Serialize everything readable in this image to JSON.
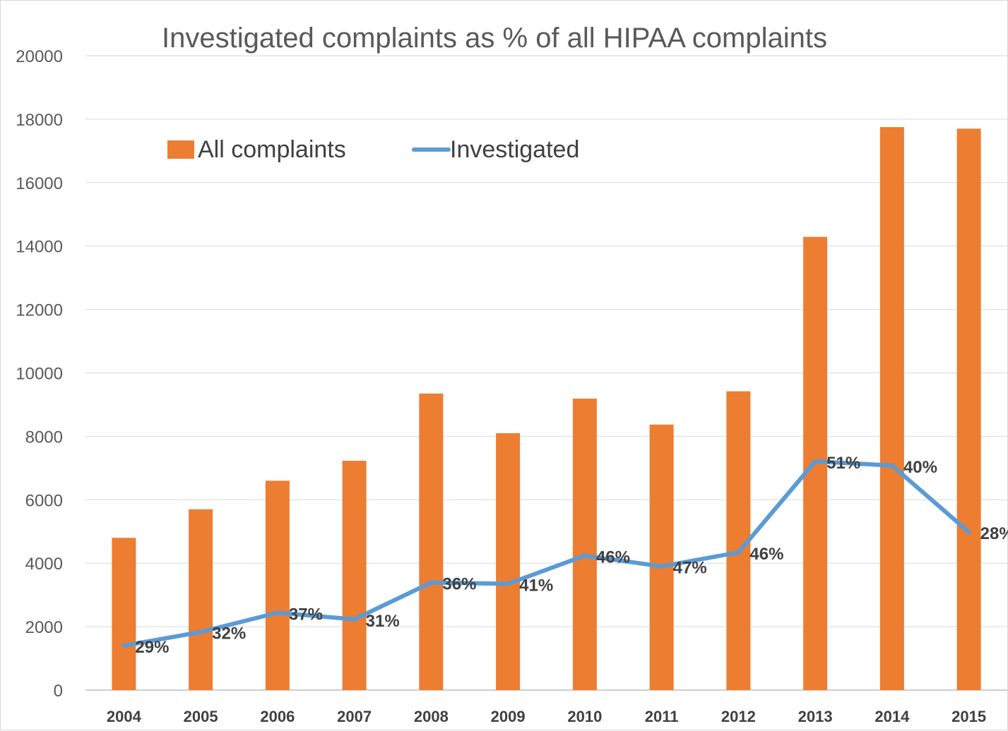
{
  "chart_data": {
    "type": "bar",
    "title": "Investigated complaints as % of all HIPAA complaints",
    "xlabel": "",
    "ylabel": "",
    "ylim": [
      0,
      20000
    ],
    "yticks": [
      "0",
      "2000",
      "4000",
      "6000",
      "8000",
      "10000",
      "12000",
      "14000",
      "16000",
      "18000",
      "20000"
    ],
    "grid": "horizontal",
    "legend_position": "top-left",
    "categories": [
      "2004",
      "2005",
      "2006",
      "2007",
      "2008",
      "2009",
      "2010",
      "2011",
      "2012",
      "2013",
      "2014",
      "2015"
    ],
    "series": [
      {
        "name": "All complaints",
        "type": "bar",
        "color": "#ED7D31",
        "values": [
          4800,
          5700,
          6600,
          7230,
          9350,
          8100,
          9190,
          8370,
          9420,
          14290,
          17750,
          17700
        ]
      },
      {
        "name": "Investigated",
        "type": "line",
        "color": "#5B9BD5",
        "values": [
          1400,
          1830,
          2440,
          2230,
          3390,
          3350,
          4240,
          3900,
          4340,
          7210,
          7080,
          4980
        ],
        "labels": [
          "29%",
          "32%",
          "37%",
          "31%",
          "36%",
          "41%",
          "46%",
          "47%",
          "46%",
          "51%",
          "40%",
          "28%"
        ]
      }
    ]
  }
}
